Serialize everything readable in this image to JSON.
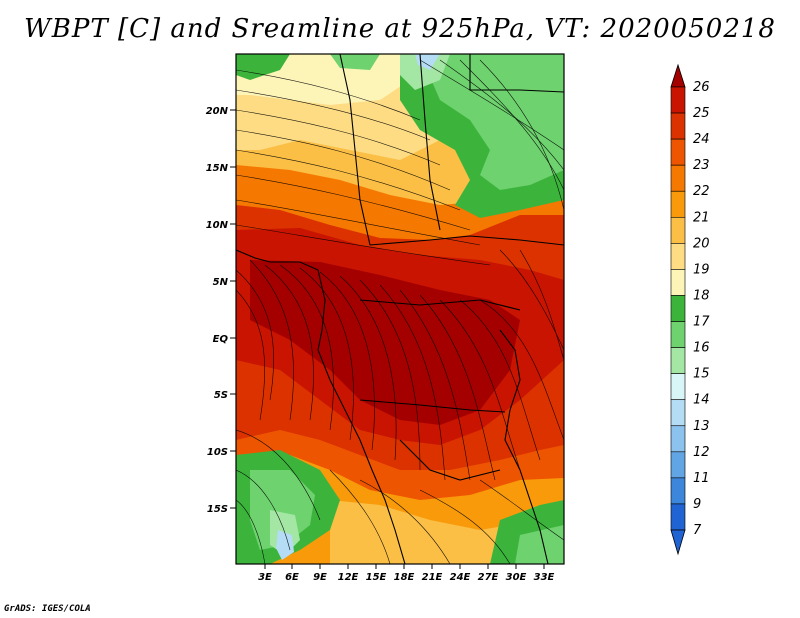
{
  "title": "WBPT [C] and Sreamline at 925hPa, VT: 2020050218",
  "credit": "GrADS: IGES/COLA",
  "map": {
    "lat_labels": [
      "20N",
      "15N",
      "10N",
      "5N",
      "EQ",
      "5S",
      "10S",
      "15S"
    ],
    "lon_labels": [
      "3E",
      "6E",
      "9E",
      "12E",
      "15E",
      "18E",
      "21E",
      "24E",
      "27E",
      "30E",
      "33E"
    ]
  },
  "colorbar": {
    "labels": [
      "26",
      "25",
      "24",
      "23",
      "22",
      "21",
      "20",
      "19",
      "18",
      "17",
      "16",
      "15",
      "14",
      "13",
      "12",
      "11",
      "9",
      "7"
    ],
    "colors": [
      "#a50000",
      "#c81400",
      "#dc3200",
      "#ee5500",
      "#f57800",
      "#f99a0a",
      "#fbbf46",
      "#fddc84",
      "#fdf4b8",
      "#3cb43c",
      "#6ed26e",
      "#a4e6a4",
      "#d8f5f8",
      "#b4dcf5",
      "#8cc3ee",
      "#62a5e4",
      "#3c87dc",
      "#1f64d2"
    ]
  }
}
